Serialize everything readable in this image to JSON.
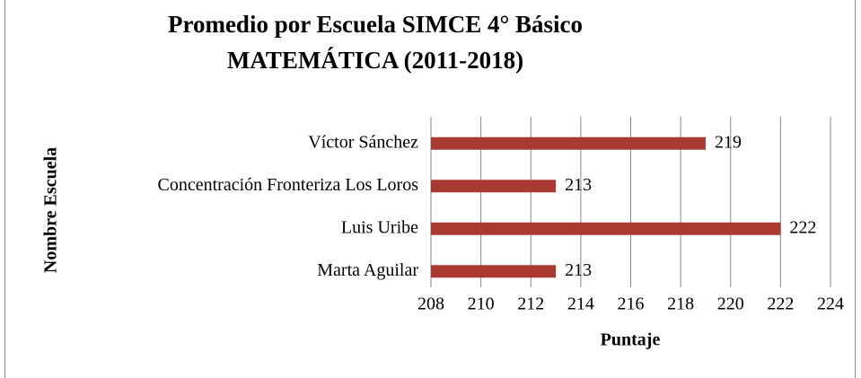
{
  "chart_data": {
    "type": "bar",
    "orientation": "horizontal",
    "title": [
      "Promedio por Escuela SIMCE 4° Básico",
      "MATEMÁTICA (2011-2018)"
    ],
    "categories": [
      "Víctor Sánchez",
      "Concentración Fronteriza Los Loros",
      "Luis Uribe",
      "Marta Aguilar"
    ],
    "values": [
      219,
      213,
      222,
      213
    ],
    "color": "#a83a32",
    "xlabel": "Puntaje",
    "ylabel": "Nombre Escuela",
    "xlim": [
      208,
      224
    ],
    "xticks": [
      208,
      210,
      212,
      214,
      216,
      218,
      220,
      222,
      224
    ],
    "grid": true
  }
}
